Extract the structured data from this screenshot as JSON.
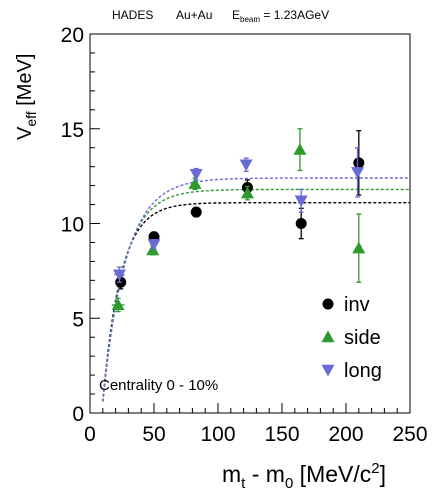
{
  "chart_data": {
    "type": "scatter",
    "header": {
      "experiment": "HADES",
      "system": "Au+Au",
      "energy_symbol": "E",
      "energy_subscript": "beam",
      "energy_value": " = 1.23AGeV"
    },
    "ylabel": {
      "main": "V",
      "sub": "eff",
      "unit": "  [MeV]"
    },
    "xlabel": {
      "p1": "m",
      "s1": "t",
      "p2": " - m",
      "s2": "0",
      "p3": " [MeV/c",
      "sup": "2",
      "p4": "]"
    },
    "xlim": [
      0,
      250
    ],
    "ylim": [
      0,
      20
    ],
    "x_ticks": [
      0,
      50,
      100,
      150,
      200,
      250
    ],
    "y_ticks": [
      0,
      5,
      10,
      15,
      20
    ],
    "x_tick_labels": [
      "0",
      "50",
      "100",
      "150",
      "200",
      "250"
    ],
    "y_tick_labels": [
      "0",
      "5",
      "10",
      "15",
      "20"
    ],
    "annotation": "Centrality 0 - 10%",
    "legend_position": "bottom-right",
    "grid": false,
    "series": [
      {
        "name": "inv",
        "marker": "circle",
        "color": "#000000",
        "points": [
          {
            "x": 24,
            "y": 6.9,
            "yerr": 0.35,
            "xerr": 3
          },
          {
            "x": 50,
            "y": 9.3,
            "yerr": 0.25,
            "xerr": 0
          },
          {
            "x": 83,
            "y": 10.6,
            "yerr": 0.25,
            "xerr": 0
          },
          {
            "x": 123,
            "y": 11.9,
            "yerr": 0.4,
            "xerr": 0
          },
          {
            "x": 165,
            "y": 10.0,
            "yerr": 0.8,
            "xerr": 0
          },
          {
            "x": 210,
            "y": 13.2,
            "yerr": 1.7,
            "xerr": 0
          }
        ],
        "fit": {
          "plateau": 11.1,
          "amplitude": 10.5,
          "x0": 10,
          "tau": 14,
          "color": "#000000"
        }
      },
      {
        "name": "side",
        "marker": "triangle-up",
        "color": "#2e9a2e",
        "points": [
          {
            "x": 22,
            "y": 5.7,
            "yerr": 0.35,
            "xerr": 5
          },
          {
            "x": 49,
            "y": 8.6,
            "yerr": 0.25,
            "xerr": 0
          },
          {
            "x": 82,
            "y": 12.1,
            "yerr": 0.3,
            "xerr": 0
          },
          {
            "x": 123,
            "y": 11.6,
            "yerr": 0.35,
            "xerr": 0
          },
          {
            "x": 164,
            "y": 13.9,
            "yerr": 1.1,
            "xerr": 0
          },
          {
            "x": 210,
            "y": 8.7,
            "yerr": 1.8,
            "xerr": 0
          }
        ],
        "fit": {
          "plateau": 11.8,
          "amplitude": 11.2,
          "x0": 10,
          "tau": 16,
          "color": "#2e9a2e"
        }
      },
      {
        "name": "long",
        "marker": "triangle-down",
        "color": "#6a6ad6",
        "points": [
          {
            "x": 23,
            "y": 7.3,
            "yerr": 0.4,
            "xerr": 4
          },
          {
            "x": 50,
            "y": 8.9,
            "yerr": 0.25,
            "xerr": 0
          },
          {
            "x": 83,
            "y": 12.6,
            "yerr": 0.3,
            "xerr": 0
          },
          {
            "x": 122,
            "y": 13.1,
            "yerr": 0.35,
            "xerr": 0
          },
          {
            "x": 165,
            "y": 11.2,
            "yerr": 0.6,
            "xerr": 0
          },
          {
            "x": 209,
            "y": 12.7,
            "yerr": 1.3,
            "xerr": 0
          }
        ],
        "fit": {
          "plateau": 12.4,
          "amplitude": 11.8,
          "x0": 10,
          "tau": 18,
          "color": "#6a6ad6"
        }
      }
    ]
  }
}
